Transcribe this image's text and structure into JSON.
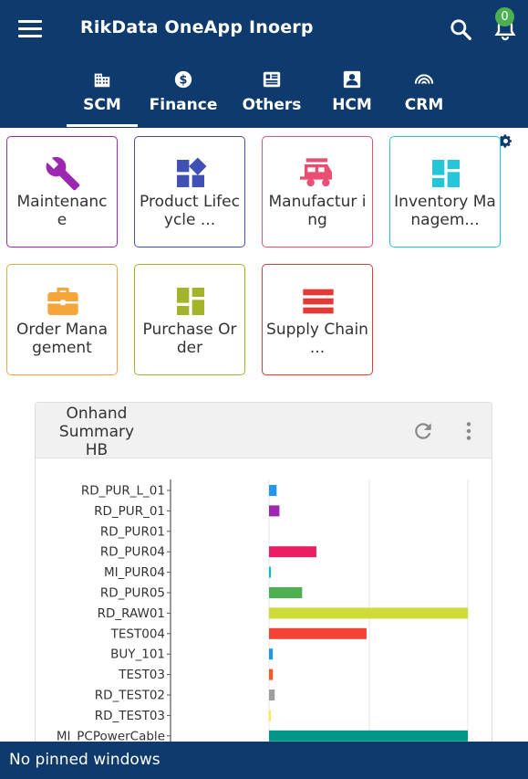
{
  "app": {
    "title": "RikData OneApp Inoerp",
    "notification_count": "0"
  },
  "tabs": [
    {
      "label": "SCM",
      "icon": "building-icon",
      "active": true
    },
    {
      "label": "Finance",
      "icon": "dollar-icon",
      "active": false
    },
    {
      "label": "Others",
      "icon": "list-icon",
      "active": false
    },
    {
      "label": "HCM",
      "icon": "person-badge-icon",
      "active": false
    },
    {
      "label": "CRM",
      "icon": "signal-arc-icon",
      "active": false
    }
  ],
  "tiles": [
    {
      "label": "Maintenanc e",
      "icon": "wrench-icon",
      "color": "#9c27b0"
    },
    {
      "label": "Product Lifecycle ...",
      "icon": "widgets-icon",
      "color": "#3f51b5"
    },
    {
      "label": "Manufactur ing",
      "icon": "rv-trailer-icon",
      "color": "#e94f73"
    },
    {
      "label": "Inventory Managem...",
      "icon": "dashboard-icon",
      "color": "#26c6da"
    },
    {
      "label": "Order Mana gement",
      "icon": "briefcase-icon",
      "color": "#f5a53a"
    },
    {
      "label": "Purchase Order",
      "icon": "grid-icon",
      "color": "#a4b42a"
    },
    {
      "label": "Supply Chain ...",
      "icon": "lines-icon",
      "color": "#e53935"
    }
  ],
  "card": {
    "title": "Onhand Summary HB"
  },
  "chart_data": {
    "type": "bar",
    "orientation": "horizontal",
    "categories": [
      "RD_PUR_L_01",
      "RD_PUR_01",
      "RD_PUR01",
      "RD_PUR04",
      "MI_PUR04",
      "RD_PUR05",
      "RD_RAW01",
      "TEST004",
      "BUY_101",
      "TEST03",
      "RD_TEST02",
      "RD_TEST03",
      "MI_PCPowerCable"
    ],
    "values": [
      0.8,
      1.1,
      0,
      5.0,
      0.1,
      3.5,
      21.0,
      10.3,
      0.4,
      0.4,
      0.6,
      0.2,
      21.0
    ],
    "colors": [
      "#2196f3",
      "#9c27b0",
      "#999999",
      "#e91e63",
      "#00bcd4",
      "#4caf50",
      "#cddc39",
      "#f44336",
      "#2196f3",
      "#ff5722",
      "#9e9e9e",
      "#ffeb3b",
      "#009688"
    ],
    "grid": true
  },
  "footer": {
    "text": "No pinned windows"
  }
}
